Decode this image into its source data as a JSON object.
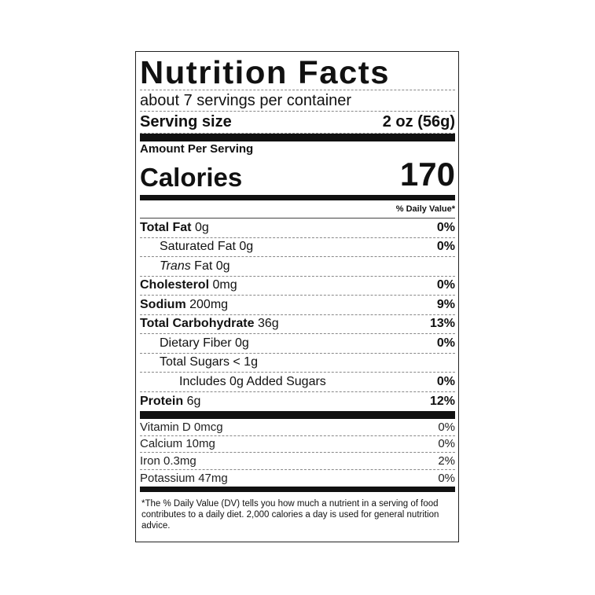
{
  "title": "Nutrition Facts",
  "servings_per_container": "about 7 servings per container",
  "serving_size": {
    "label": "Serving size",
    "value": "2 oz (56g)"
  },
  "amount_per_serving": "Amount Per Serving",
  "calories": {
    "label": "Calories",
    "value": "170"
  },
  "daily_value_header": "% Daily Value*",
  "nutrients": [
    {
      "name": "Total Fat",
      "amount": "0g",
      "dv": "0%"
    },
    {
      "name": "Saturated Fat",
      "amount": "0g",
      "dv": "0%"
    },
    {
      "name": "Trans",
      "name2": "Fat",
      "amount": "0g",
      "dv": ""
    },
    {
      "name": "Cholesterol",
      "amount": "0mg",
      "dv": "0%"
    },
    {
      "name": "Sodium",
      "amount": "200mg",
      "dv": "9%"
    },
    {
      "name": "Total Carbohydrate",
      "amount": "36g",
      "dv": "13%"
    },
    {
      "name": "Dietary Fiber",
      "amount": "0g",
      "dv": "0%"
    },
    {
      "name": "Total Sugars",
      "amount": "< 1g",
      "dv": ""
    },
    {
      "name": "Includes 0g Added Sugars",
      "amount": "",
      "dv": "0%"
    },
    {
      "name": "Protein",
      "amount": "6g",
      "dv": "12%"
    }
  ],
  "vitamins": [
    {
      "name": "Vitamin D 0mcg",
      "dv": "0%"
    },
    {
      "name": "Calcium 10mg",
      "dv": "0%"
    },
    {
      "name": "Iron 0.3mg",
      "dv": "2%"
    },
    {
      "name": "Potassium 47mg",
      "dv": "0%"
    }
  ],
  "footnote": "*The % Daily Value (DV) tells you how much a nutrient in a serving of food contributes to a daily diet. 2,000 calories a day is used for general nutrition advice."
}
